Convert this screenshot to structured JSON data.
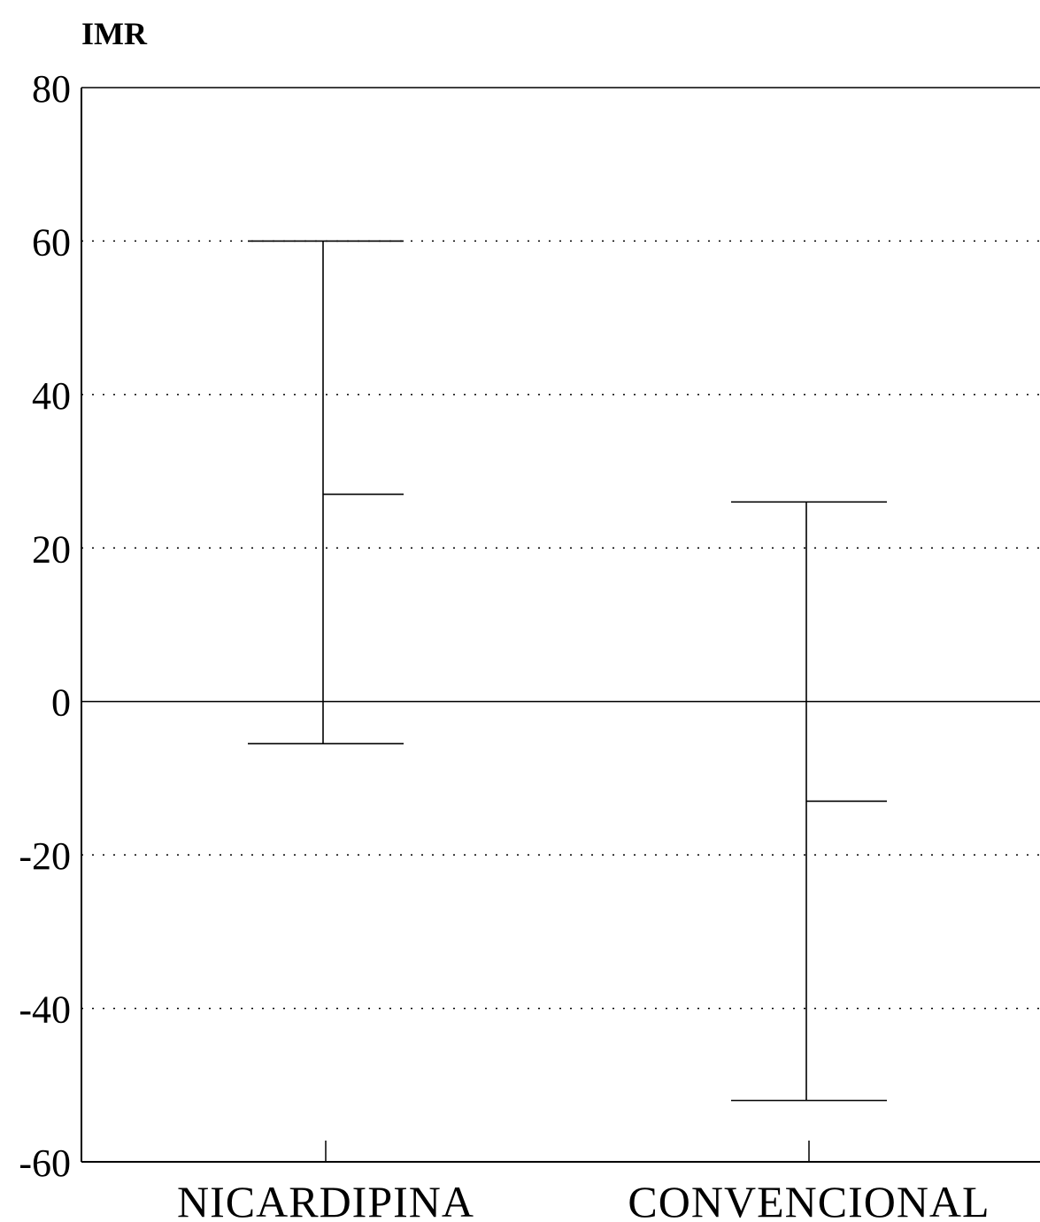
{
  "chart_data": {
    "type": "error-bar",
    "ylabel": "IMR",
    "ylim": [
      -60,
      80
    ],
    "yticks": [
      80,
      60,
      40,
      20,
      0,
      -20,
      -40,
      -60
    ],
    "grid": "dotted horizontal lines at ±20, ±40, 60",
    "categories": [
      "NICARDIPINA",
      "CONVENCIONAL"
    ],
    "series": [
      {
        "category": "NICARDIPINA",
        "upper": 60,
        "mean": 27,
        "lower": -5.5
      },
      {
        "category": "CONVENCIONAL",
        "upper": 26,
        "mean": -13,
        "lower": -52
      }
    ]
  }
}
